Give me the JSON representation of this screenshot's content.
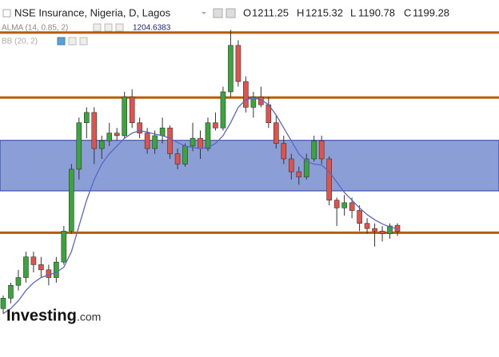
{
  "chart_data": {
    "type": "candlestick",
    "title": "NSE Insurance, Nigeria, D, Lagos",
    "ohlc_labels": [
      "O",
      "H",
      "L",
      "C"
    ],
    "indicators": [
      "ALMA (14, 0.85, 2)",
      "BB (20, 2)"
    ],
    "logo": "Investing",
    "logo_suffix": ".com",
    "ylim": [
      956,
      1648
    ],
    "up_color": "#3aa53a",
    "down_color": "#e0524a",
    "open": [
      1050,
      1070,
      1095,
      1110,
      1150,
      1135,
      1125,
      1110,
      1140,
      1200,
      1320,
      1410,
      1430,
      1360,
      1375,
      1390,
      1385,
      1460,
      1410,
      1390,
      1360,
      1385,
      1400,
      1350,
      1330,
      1365,
      1380,
      1360,
      1410,
      1400,
      1470,
      1560,
      1490,
      1440,
      1460,
      1445,
      1410,
      1370,
      1340,
      1315,
      1305,
      1340,
      1375,
      1340,
      1260,
      1245,
      1255,
      1240,
      1215,
      1205,
      1200,
      1195,
      1211.25
    ],
    "high": [
      1075,
      1100,
      1125,
      1160,
      1160,
      1150,
      1135,
      1150,
      1210,
      1330,
      1420,
      1440,
      1440,
      1385,
      1410,
      1400,
      1470,
      1475,
      1420,
      1400,
      1395,
      1420,
      1405,
      1360,
      1370,
      1410,
      1395,
      1420,
      1430,
      1480,
      1590,
      1570,
      1500,
      1470,
      1480,
      1460,
      1425,
      1385,
      1350,
      1325,
      1350,
      1385,
      1385,
      1345,
      1265,
      1270,
      1265,
      1250,
      1225,
      1215,
      1210,
      1215,
      1215.32
    ],
    "low": [
      1040,
      1060,
      1085,
      1100,
      1120,
      1110,
      1095,
      1100,
      1135,
      1195,
      1300,
      1380,
      1330,
      1340,
      1365,
      1375,
      1380,
      1400,
      1380,
      1350,
      1350,
      1370,
      1340,
      1320,
      1325,
      1355,
      1340,
      1355,
      1395,
      1395,
      1460,
      1480,
      1430,
      1420,
      1440,
      1400,
      1360,
      1330,
      1300,
      1290,
      1300,
      1335,
      1330,
      1250,
      1210,
      1230,
      1225,
      1200,
      1195,
      1170,
      1180,
      1185,
      1190.78
    ],
    "close": [
      1070,
      1095,
      1110,
      1150,
      1135,
      1125,
      1110,
      1140,
      1200,
      1320,
      1410,
      1430,
      1360,
      1375,
      1390,
      1385,
      1460,
      1410,
      1390,
      1360,
      1385,
      1400,
      1350,
      1330,
      1365,
      1380,
      1360,
      1410,
      1400,
      1470,
      1560,
      1490,
      1440,
      1460,
      1445,
      1410,
      1370,
      1340,
      1315,
      1305,
      1340,
      1375,
      1340,
      1260,
      1245,
      1255,
      1240,
      1215,
      1205,
      1200,
      1195,
      1210,
      1199.28
    ],
    "alma": {
      "color": "#5a66c8",
      "values": [
        1040,
        1050,
        1065,
        1085,
        1100,
        1110,
        1115,
        1120,
        1130,
        1160,
        1210,
        1260,
        1300,
        1330,
        1350,
        1365,
        1380,
        1390,
        1395,
        1392,
        1388,
        1385,
        1380,
        1372,
        1365,
        1362,
        1360,
        1362,
        1370,
        1385,
        1410,
        1440,
        1455,
        1458,
        1455,
        1445,
        1425,
        1400,
        1375,
        1350,
        1335,
        1330,
        1328,
        1315,
        1295,
        1275,
        1260,
        1245,
        1232,
        1222,
        1214,
        1208,
        1204.6383
      ]
    },
    "levels": {
      "color": "#b85c00",
      "values": [
        1585,
        1459,
        1197
      ]
    },
    "zone": {
      "color": "#8c9ed6",
      "values": [
        1278,
        1376
      ]
    }
  }
}
